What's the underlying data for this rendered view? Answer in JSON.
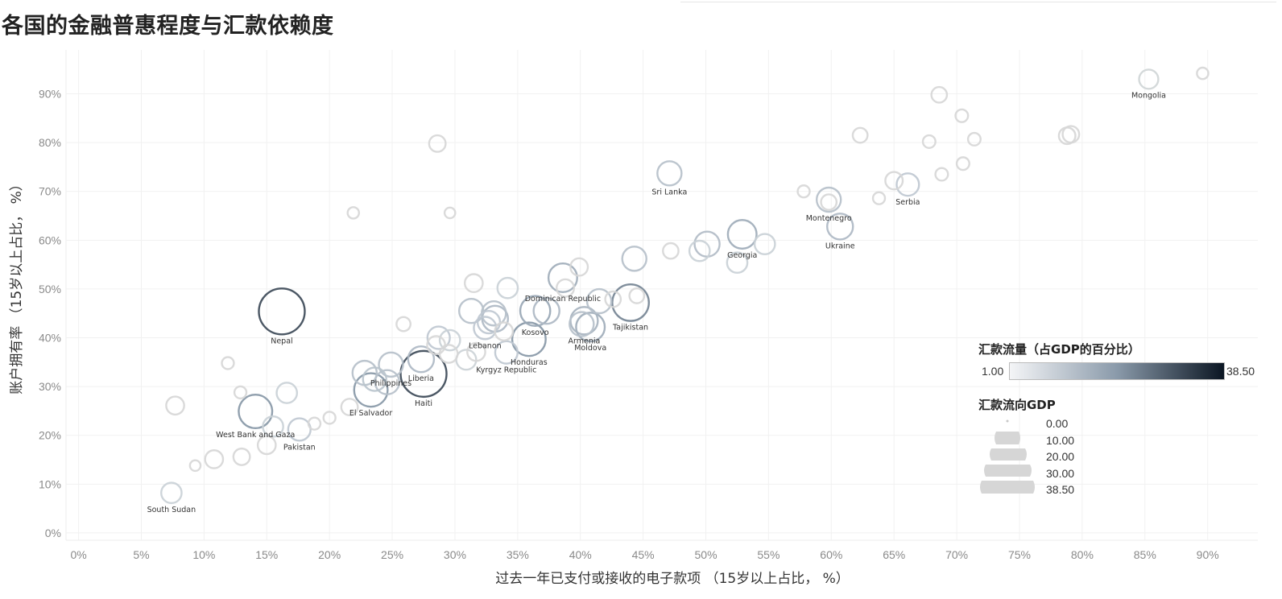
{
  "title": "各国的金融普惠程度与汇款依赖度",
  "chart_data": {
    "type": "scatter",
    "title": "各国的金融普惠程度与汇款依赖度",
    "xlabel": "过去一年已支付或接收的电子款项 （15岁以上占比， %）",
    "ylabel": "账户拥有率 （15岁以上占比， %）",
    "xlim": [
      -1,
      94
    ],
    "ylim": [
      -1.5,
      99
    ],
    "x_ticks": [
      "0%",
      "5%",
      "10%",
      "15%",
      "20%",
      "25%",
      "30%",
      "35%",
      "40%",
      "45%",
      "50%",
      "55%",
      "60%",
      "65%",
      "70%",
      "75%",
      "80%",
      "85%",
      "90%"
    ],
    "y_ticks": [
      "0%",
      "10%",
      "20%",
      "30%",
      "40%",
      "50%",
      "60%",
      "70%",
      "80%",
      "90%"
    ],
    "grid": true,
    "points": [
      {
        "label": "Mongolia",
        "x": 85.3,
        "y": 93,
        "size": 2.5
      },
      {
        "label": "",
        "x": 89.6,
        "y": 94.2,
        "size": 0.3
      },
      {
        "label": "",
        "x": 68.6,
        "y": 89.8,
        "size": 1.2
      },
      {
        "label": "",
        "x": 70.4,
        "y": 85.5,
        "size": 0.5
      },
      {
        "label": "",
        "x": 62.3,
        "y": 81.5,
        "size": 1.0
      },
      {
        "label": "",
        "x": 67.8,
        "y": 80.2,
        "size": 0.5
      },
      {
        "label": "",
        "x": 71.4,
        "y": 80.7,
        "size": 0.5
      },
      {
        "label": "",
        "x": 78.8,
        "y": 81.4,
        "size": 1.5
      },
      {
        "label": "",
        "x": 79.1,
        "y": 81.7,
        "size": 1.5
      },
      {
        "label": "",
        "x": 70.5,
        "y": 75.7,
        "size": 0.5
      },
      {
        "label": "",
        "x": 68.8,
        "y": 73.5,
        "size": 0.5
      },
      {
        "label": "",
        "x": 65,
        "y": 72.2,
        "size": 1.8
      },
      {
        "label": "Serbia",
        "x": 66.1,
        "y": 71.4,
        "size": 4
      },
      {
        "label": "Sri Lanka",
        "x": 47.1,
        "y": 73.7,
        "size": 5
      },
      {
        "label": "",
        "x": 57.8,
        "y": 70,
        "size": 0.4
      },
      {
        "label": "",
        "x": 63.8,
        "y": 68.6,
        "size": 0.4
      },
      {
        "label": "Montenegro",
        "x": 59.8,
        "y": 68.3,
        "size": 5
      },
      {
        "label": "",
        "x": 59.8,
        "y": 67.8,
        "size": 1.2
      },
      {
        "label": "Ukraine",
        "x": 60.7,
        "y": 62.8,
        "size": 6
      },
      {
        "label": "",
        "x": 21.9,
        "y": 65.6,
        "size": 0.3
      },
      {
        "label": "Georgia",
        "x": 52.9,
        "y": 61.2,
        "size": 8
      },
      {
        "label": "",
        "x": 50.1,
        "y": 59.2,
        "size": 5.5
      },
      {
        "label": "",
        "x": 49.5,
        "y": 57.8,
        "size": 3
      },
      {
        "label": "",
        "x": 54.7,
        "y": 59.2,
        "size": 3
      },
      {
        "label": "",
        "x": 52.5,
        "y": 55.4,
        "size": 3
      },
      {
        "label": "",
        "x": 47.2,
        "y": 57.8,
        "size": 1.2
      },
      {
        "label": "",
        "x": 44.3,
        "y": 56.2,
        "size": 5
      },
      {
        "label": "Dominican Republic",
        "x": 38.6,
        "y": 52.3,
        "size": 8
      },
      {
        "label": "",
        "x": 39.9,
        "y": 54.5,
        "size": 1.8
      },
      {
        "label": "",
        "x": 34.2,
        "y": 50.2,
        "size": 3
      },
      {
        "label": "",
        "x": 31.5,
        "y": 51.2,
        "size": 2
      },
      {
        "label": "",
        "x": 38.8,
        "y": 50.2,
        "size": 1.8
      },
      {
        "label": "",
        "x": 42.6,
        "y": 47.9,
        "size": 1.2
      },
      {
        "label": "Kosovo",
        "x": 36.4,
        "y": 45.5,
        "size": 9
      },
      {
        "label": "",
        "x": 37.3,
        "y": 45.5,
        "size": 6
      },
      {
        "label": "",
        "x": 41.5,
        "y": 47.5,
        "size": 5
      },
      {
        "label": "Armenia",
        "x": 40.3,
        "y": 43.5,
        "size": 7
      },
      {
        "label": "",
        "x": 40.1,
        "y": 42.8,
        "size": 5
      },
      {
        "label": "Tajikistan",
        "x": 44,
        "y": 47.2,
        "size": 15
      },
      {
        "label": "",
        "x": 44.5,
        "y": 48.6,
        "size": 1
      },
      {
        "label": "Moldova",
        "x": 40.8,
        "y": 42.2,
        "size": 8
      },
      {
        "label": "",
        "x": 31.3,
        "y": 45.5,
        "size": 5
      },
      {
        "label": "",
        "x": 33.1,
        "y": 45,
        "size": 5
      },
      {
        "label": "",
        "x": 33.2,
        "y": 43.9,
        "size": 6
      },
      {
        "label": "",
        "x": 32.7,
        "y": 43.2,
        "size": 4
      },
      {
        "label": "Lebanon",
        "x": 32.4,
        "y": 42,
        "size": 4
      },
      {
        "label": "",
        "x": 33.9,
        "y": 41.3,
        "size": 2
      },
      {
        "label": "Honduras",
        "x": 35.9,
        "y": 39.7,
        "size": 12
      },
      {
        "label": "Kyrgyz Republic",
        "x": 34.1,
        "y": 37,
        "size": 4
      },
      {
        "label": "",
        "x": 28.7,
        "y": 40,
        "size": 4
      },
      {
        "label": "",
        "x": 29.6,
        "y": 39.5,
        "size": 3
      },
      {
        "label": "",
        "x": 28.5,
        "y": 38.5,
        "size": 2
      },
      {
        "label": "",
        "x": 29.5,
        "y": 36.7,
        "size": 2
      },
      {
        "label": "",
        "x": 31.7,
        "y": 37.1,
        "size": 2
      },
      {
        "label": "",
        "x": 30.9,
        "y": 35.5,
        "size": 2.8
      },
      {
        "label": "",
        "x": 25.9,
        "y": 42.8,
        "size": 0.8
      },
      {
        "label": "Liberia",
        "x": 27.3,
        "y": 35.6,
        "size": 6
      },
      {
        "label": "Haiti",
        "x": 27.5,
        "y": 32.6,
        "size": 26
      },
      {
        "label": "",
        "x": 28.6,
        "y": 79.8,
        "size": 1.5
      },
      {
        "label": "Philippines",
        "x": 24.9,
        "y": 34.5,
        "size": 5
      },
      {
        "label": "",
        "x": 22.8,
        "y": 32.8,
        "size": 5
      },
      {
        "label": "",
        "x": 23.6,
        "y": 31.5,
        "size": 4.5
      },
      {
        "label": "",
        "x": 24.6,
        "y": 30.9,
        "size": 5
      },
      {
        "label": "El Salvador",
        "x": 23.3,
        "y": 29.3,
        "size": 12
      },
      {
        "label": "",
        "x": 21.6,
        "y": 25.8,
        "size": 1.5
      },
      {
        "label": "Nepal",
        "x": 16.2,
        "y": 45.4,
        "size": 26
      },
      {
        "label": "",
        "x": 11.9,
        "y": 34.8,
        "size": 0.4
      },
      {
        "label": "",
        "x": 16.6,
        "y": 28.7,
        "size": 3
      },
      {
        "label": "",
        "x": 12.9,
        "y": 28.8,
        "size": 0.4
      },
      {
        "label": "West Bank and Gaza",
        "x": 14.1,
        "y": 24.9,
        "size": 12
      },
      {
        "label": "",
        "x": 15.5,
        "y": 21.8,
        "size": 3
      },
      {
        "label": "Pakistan",
        "x": 17.6,
        "y": 21.2,
        "size": 4
      },
      {
        "label": "",
        "x": 15,
        "y": 18,
        "size": 2
      },
      {
        "label": "",
        "x": 13,
        "y": 15.6,
        "size": 1.5
      },
      {
        "label": "",
        "x": 10.8,
        "y": 15.1,
        "size": 2
      },
      {
        "label": "",
        "x": 20,
        "y": 23.6,
        "size": 0.4
      },
      {
        "label": "",
        "x": 18.8,
        "y": 22.4,
        "size": 0.4
      },
      {
        "label": "",
        "x": 7.7,
        "y": 26.1,
        "size": 2
      },
      {
        "label": "",
        "x": 9.3,
        "y": 13.8,
        "size": 0.2
      },
      {
        "label": "South Sudan",
        "x": 7.4,
        "y": 8.2,
        "size": 3
      },
      {
        "label": "",
        "x": 29.6,
        "y": 65.6,
        "size": 0.2
      }
    ],
    "color_legend": {
      "title": "汇款流量（占GDP的百分比）",
      "min": "1.00",
      "max": "38.50",
      "colors": [
        "#f4f5f7",
        "#8a9aaa",
        "#0a1522"
      ]
    },
    "size_legend": {
      "title": "汇款流向GDP",
      "values": [
        "0.00",
        "10.00",
        "20.00",
        "30.00",
        "38.50"
      ]
    }
  }
}
